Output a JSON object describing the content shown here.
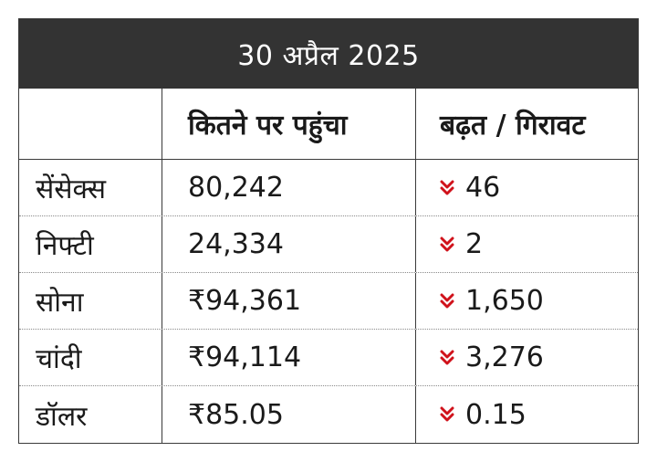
{
  "title": "30 अप्रैल 2025",
  "headers": [
    "",
    "कितने पर पहुंचा",
    "बढ़त / गिरावट"
  ],
  "rows": [
    {
      "name": "सेंसेक्स",
      "value": "80,242",
      "change": "46",
      "direction": "down"
    },
    {
      "name": "निफ्टी",
      "value": "24,334",
      "change": "2",
      "direction": "down"
    },
    {
      "name": "सोना",
      "value": "₹94,361",
      "change": "1,650",
      "direction": "down"
    },
    {
      "name": "चांदी",
      "value": "₹94,114",
      "change": "3,276",
      "direction": "down"
    },
    {
      "name": "डॉलर",
      "value": "₹85.05",
      "change": "0.15",
      "direction": "down"
    }
  ],
  "colors": {
    "banner_bg": "#333333",
    "down_arrow": "#d0121b"
  },
  "icons": {
    "down": "double-chevron-down-icon"
  }
}
